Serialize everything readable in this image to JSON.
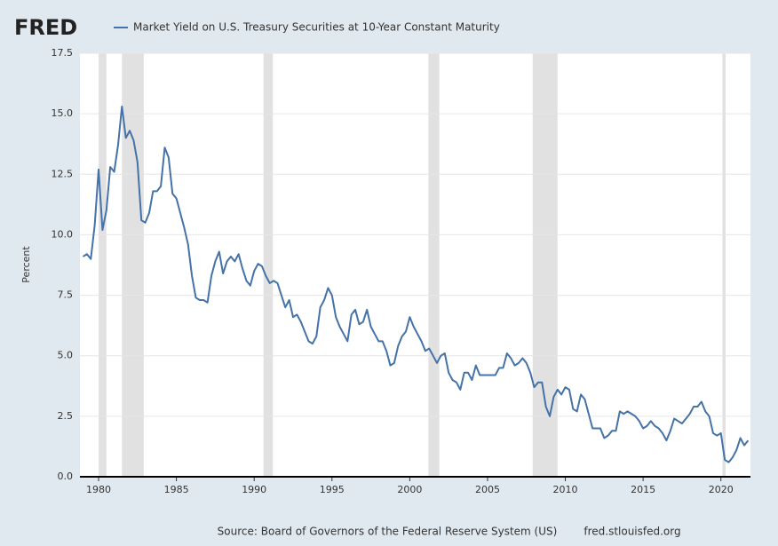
{
  "chart_data": {
    "type": "line",
    "logo": "FRED",
    "title": "Market Yield on U.S. Treasury Securities at 10-Year Constant Maturity",
    "ylabel": "Percent",
    "source": "Source: Board of Governors of the Federal Reserve System (US)",
    "site": "fred.stlouisfed.org",
    "xlim": [
      1978.8,
      2021.9
    ],
    "xticks": [
      1980,
      1985,
      1990,
      1995,
      2000,
      2005,
      2010,
      2015,
      2020
    ],
    "ylim": [
      0,
      17.5
    ],
    "yticks": [
      {
        "value": 0,
        "label": "0.0"
      },
      2.5,
      {
        "value": 5,
        "label": "5.0"
      },
      7.5,
      {
        "value": 10,
        "label": "10.0"
      },
      12.5,
      {
        "value": 15,
        "label": "15.0"
      },
      17.5
    ],
    "grid": true,
    "recessions": [
      [
        1980.0,
        1980.5
      ],
      [
        1981.5,
        1982.9
      ],
      [
        1990.6,
        1991.2
      ],
      [
        2001.2,
        2001.9
      ],
      [
        2007.9,
        2009.5
      ],
      [
        2020.1,
        2020.3
      ]
    ],
    "x": [
      1979,
      1979.25,
      1979.5,
      1979.75,
      1980,
      1980.25,
      1980.5,
      1980.75,
      1981,
      1981.25,
      1981.5,
      1981.75,
      1982,
      1982.25,
      1982.5,
      1982.75,
      1983,
      1983.25,
      1983.5,
      1983.75,
      1984,
      1984.25,
      1984.5,
      1984.75,
      1985,
      1985.25,
      1985.5,
      1985.75,
      1986,
      1986.25,
      1986.5,
      1986.75,
      1987,
      1987.25,
      1987.5,
      1987.75,
      1988,
      1988.25,
      1988.5,
      1988.75,
      1989,
      1989.25,
      1989.5,
      1989.75,
      1990,
      1990.25,
      1990.5,
      1990.75,
      1991,
      1991.25,
      1991.5,
      1991.75,
      1992,
      1992.25,
      1992.5,
      1992.75,
      1993,
      1993.25,
      1993.5,
      1993.75,
      1994,
      1994.25,
      1994.5,
      1994.75,
      1995,
      1995.25,
      1995.5,
      1995.75,
      1996,
      1996.25,
      1996.5,
      1996.75,
      1997,
      1997.25,
      1997.5,
      1997.75,
      1998,
      1998.25,
      1998.5,
      1998.75,
      1999,
      1999.25,
      1999.5,
      1999.75,
      2000,
      2000.25,
      2000.5,
      2000.75,
      2001,
      2001.25,
      2001.5,
      2001.75,
      2002,
      2002.25,
      2002.5,
      2002.75,
      2003,
      2003.25,
      2003.5,
      2003.75,
      2004,
      2004.25,
      2004.5,
      2004.75,
      2005,
      2005.25,
      2005.5,
      2005.75,
      2006,
      2006.25,
      2006.5,
      2006.75,
      2007,
      2007.25,
      2007.5,
      2007.75,
      2008,
      2008.25,
      2008.5,
      2008.75,
      2009,
      2009.25,
      2009.5,
      2009.75,
      2010,
      2010.25,
      2010.5,
      2010.75,
      2011,
      2011.25,
      2011.5,
      2011.75,
      2012,
      2012.25,
      2012.5,
      2012.75,
      2013,
      2013.25,
      2013.5,
      2013.75,
      2014,
      2014.25,
      2014.5,
      2014.75,
      2015,
      2015.25,
      2015.5,
      2015.75,
      2016,
      2016.25,
      2016.5,
      2016.75,
      2017,
      2017.25,
      2017.5,
      2017.75,
      2018,
      2018.25,
      2018.5,
      2018.75,
      2019,
      2019.25,
      2019.5,
      2019.75,
      2020,
      2020.25,
      2020.5,
      2020.75,
      2021,
      2021.25,
      2021.5,
      2021.75
    ],
    "series": [
      {
        "name": "Market Yield on U.S. Treasury Securities at 10-Year Constant Maturity",
        "color": "#4572a7",
        "values": [
          9.1,
          9.2,
          9.0,
          10.4,
          12.7,
          10.2,
          11.0,
          12.8,
          12.6,
          13.7,
          15.3,
          14.0,
          14.3,
          13.9,
          13.0,
          10.6,
          10.5,
          10.9,
          11.8,
          11.8,
          12.0,
          13.6,
          13.2,
          11.7,
          11.5,
          10.9,
          10.3,
          9.6,
          8.3,
          7.4,
          7.3,
          7.3,
          7.2,
          8.3,
          8.9,
          9.3,
          8.4,
          8.9,
          9.1,
          8.9,
          9.2,
          8.6,
          8.1,
          7.9,
          8.5,
          8.8,
          8.7,
          8.3,
          8.0,
          8.1,
          8.0,
          7.5,
          7.0,
          7.3,
          6.6,
          6.7,
          6.4,
          6.0,
          5.6,
          5.5,
          5.8,
          7.0,
          7.3,
          7.8,
          7.5,
          6.6,
          6.2,
          5.9,
          5.6,
          6.7,
          6.9,
          6.3,
          6.4,
          6.9,
          6.2,
          5.9,
          5.6,
          5.6,
          5.2,
          4.6,
          4.7,
          5.4,
          5.8,
          6.0,
          6.6,
          6.2,
          5.9,
          5.6,
          5.2,
          5.3,
          5.0,
          4.7,
          5.0,
          5.1,
          4.3,
          4.0,
          3.9,
          3.6,
          4.3,
          4.3,
          4.0,
          4.6,
          4.2,
          4.2,
          4.2,
          4.2,
          4.2,
          4.5,
          4.5,
          5.1,
          4.9,
          4.6,
          4.7,
          4.9,
          4.7,
          4.3,
          3.7,
          3.9,
          3.9,
          2.9,
          2.5,
          3.3,
          3.6,
          3.4,
          3.7,
          3.6,
          2.8,
          2.7,
          3.4,
          3.2,
          2.6,
          2.0,
          2.0,
          2.0,
          1.6,
          1.7,
          1.9,
          1.9,
          2.7,
          2.6,
          2.7,
          2.6,
          2.5,
          2.3,
          2.0,
          2.1,
          2.3,
          2.1,
          2.0,
          1.8,
          1.5,
          1.9,
          2.4,
          2.3,
          2.2,
          2.4,
          2.6,
          2.9,
          2.9,
          3.1,
          2.7,
          2.5,
          1.8,
          1.7,
          1.8,
          0.7,
          0.6,
          0.8,
          1.1,
          1.6,
          1.3,
          1.5
        ]
      }
    ]
  }
}
